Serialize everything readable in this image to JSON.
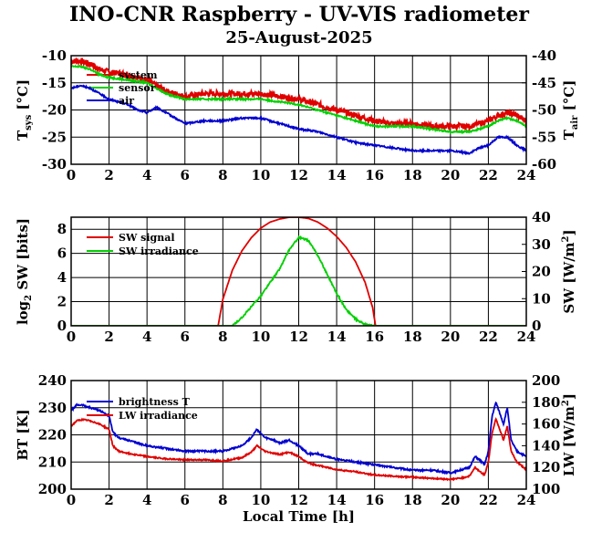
{
  "title": "INO-CNR Raspberry - UV-VIS radiometer",
  "subtitle": "25-August-2025",
  "colors": {
    "red": "#e00000",
    "green": "#00d000",
    "blue": "#0000d0",
    "grid": "#000000"
  },
  "chart_data": [
    {
      "type": "line",
      "xlim": [
        0,
        24
      ],
      "x_ticks": [
        "0",
        "2",
        "4",
        "6",
        "8",
        "10",
        "12",
        "14",
        "16",
        "18",
        "20",
        "22",
        "24"
      ],
      "ylabel_left": {
        "main": "T",
        "sub": "sys",
        "unit": " [°C]"
      },
      "ylabel_right": {
        "main": "T",
        "sub": "air",
        "unit": " [°C]"
      },
      "ylim_left": [
        -30,
        -10
      ],
      "ylim_right": [
        -60,
        -40
      ],
      "y_ticks_left": [
        "-30",
        "-25",
        "-20",
        "-15",
        "-10"
      ],
      "y_ticks_right": [
        "-60",
        "-55",
        "-50",
        "-45",
        "-40"
      ],
      "grid": true,
      "legend": "top-left",
      "series": [
        {
          "name": "system",
          "color": "red",
          "axis": "left",
          "noise": 0.5,
          "x": [
            0,
            0.5,
            1,
            1.5,
            2,
            3,
            4,
            4.5,
            5,
            5.5,
            6,
            7,
            8,
            9,
            10,
            11,
            12,
            12.5,
            13,
            14,
            15,
            16,
            17,
            18,
            19,
            20,
            20.5,
            21,
            21.5,
            22,
            22.5,
            23,
            23.5,
            24
          ],
          "y": [
            -11,
            -11,
            -11.5,
            -12.5,
            -13,
            -13.5,
            -14.5,
            -15.5,
            -16.5,
            -17,
            -17.5,
            -17,
            -17,
            -17,
            -17,
            -17.5,
            -18,
            -18.5,
            -19,
            -20,
            -21,
            -22,
            -22.5,
            -22.5,
            -23,
            -23,
            -23,
            -23,
            -22.5,
            -22,
            -21,
            -20.5,
            -21,
            -22
          ]
        },
        {
          "name": "sensor",
          "color": "green",
          "axis": "left",
          "noise": 0.15,
          "x": [
            0,
            0.5,
            1,
            1.5,
            2,
            3,
            4,
            4.5,
            5,
            5.5,
            6,
            7,
            8,
            9,
            10,
            11,
            12,
            12.5,
            13,
            14,
            15,
            16,
            17,
            18,
            19,
            20,
            20.5,
            21,
            21.5,
            22,
            22.5,
            23,
            23.5,
            24
          ],
          "y": [
            -12,
            -12,
            -12.5,
            -13.5,
            -14,
            -14.5,
            -15,
            -16,
            -17,
            -17.5,
            -18,
            -18,
            -18,
            -18,
            -18,
            -18.5,
            -19,
            -19.5,
            -20,
            -21,
            -22,
            -23,
            -23,
            -23,
            -23.5,
            -24,
            -24,
            -24,
            -23.5,
            -23,
            -22,
            -21.5,
            -22,
            -23
          ]
        },
        {
          "name": "air",
          "color": "blue",
          "axis": "right",
          "noise": 0.15,
          "x": [
            0,
            0.5,
            1,
            1.5,
            2,
            2.5,
            3,
            3.5,
            4,
            4.5,
            5,
            5.5,
            6,
            7,
            8,
            9,
            10,
            11,
            12,
            13,
            14,
            15,
            16,
            17,
            18,
            19,
            20,
            21,
            21.5,
            22,
            22.5,
            23,
            23.5,
            24
          ],
          "y": [
            -46,
            -45.5,
            -46,
            -47,
            -48,
            -48.5,
            -49,
            -50,
            -50.5,
            -49.5,
            -50.5,
            -51.5,
            -52.5,
            -52,
            -52,
            -51.5,
            -51.5,
            -52.5,
            -53.5,
            -54,
            -55,
            -56,
            -56.5,
            -57,
            -57.5,
            -57.5,
            -57.5,
            -58,
            -57,
            -56.5,
            -55,
            -55,
            -56.5,
            -57.5
          ]
        }
      ]
    },
    {
      "type": "line",
      "xlim": [
        0,
        24
      ],
      "x_ticks": [
        "0",
        "2",
        "4",
        "6",
        "8",
        "10",
        "12",
        "14",
        "16",
        "18",
        "20",
        "22",
        "24"
      ],
      "ylabel_left": {
        "main": "log",
        "sub": "2",
        "unit": " SW [bits]"
      },
      "ylabel_right": {
        "main": "SW [W/m",
        "sup": "2",
        "unit": "]"
      },
      "ylim_left": [
        0,
        9
      ],
      "ylim_right": [
        0,
        40
      ],
      "y_ticks_left": [
        "0",
        "2",
        "4",
        "6",
        "8"
      ],
      "y_ticks_right": [
        "0",
        "10",
        "20",
        "30",
        "40"
      ],
      "grid": true,
      "legend": "top-left",
      "series": [
        {
          "name": "SW signal",
          "color": "red",
          "axis": "left",
          "noise": 0,
          "x": [
            0,
            7.75,
            8,
            8.5,
            9,
            9.5,
            10,
            10.5,
            11,
            11.5,
            12,
            12.5,
            13,
            13.5,
            14,
            14.5,
            15,
            15.5,
            15.9,
            16.05,
            16.1,
            24
          ],
          "y": [
            0,
            0,
            2.2,
            4.6,
            6.2,
            7.3,
            8.1,
            8.6,
            8.85,
            9,
            9,
            8.9,
            8.6,
            8.1,
            7.4,
            6.5,
            5.3,
            3.6,
            1.5,
            0,
            0,
            0
          ]
        },
        {
          "name": "SW irradiance",
          "color": "green",
          "axis": "right",
          "noise": 0.3,
          "x": [
            0,
            8.5,
            9,
            9.5,
            10,
            10.5,
            11,
            11.5,
            12,
            12.5,
            13,
            13.5,
            14,
            14.5,
            15,
            15.5,
            16,
            24
          ],
          "y": [
            0,
            0,
            3,
            7,
            11,
            16,
            21,
            28,
            32.5,
            31.5,
            26,
            19,
            12,
            6,
            2.5,
            0.5,
            0,
            0
          ]
        }
      ]
    },
    {
      "type": "line",
      "xlim": [
        0,
        24
      ],
      "x_ticks": [
        "0",
        "2",
        "4",
        "6",
        "8",
        "10",
        "12",
        "14",
        "16",
        "18",
        "20",
        "22",
        "24"
      ],
      "xlabel": "Local Time [h]",
      "ylabel_left": {
        "main": "BT [K]"
      },
      "ylabel_right": {
        "main": "LW [W/m",
        "sup": "2",
        "unit": "]"
      },
      "ylim_left": [
        200,
        240
      ],
      "ylim_right": [
        100,
        200
      ],
      "y_ticks_left": [
        "200",
        "210",
        "220",
        "230",
        "240"
      ],
      "y_ticks_right": [
        "100",
        "120",
        "140",
        "160",
        "180",
        "200"
      ],
      "grid": true,
      "legend": "top-left",
      "series": [
        {
          "name": "brightness T",
          "color": "blue",
          "axis": "left",
          "noise": 0.3,
          "x": [
            0,
            0.3,
            0.6,
            1,
            1.5,
            2,
            2.2,
            2.5,
            3,
            4,
            5,
            6,
            7,
            8,
            9,
            9.5,
            9.8,
            10.2,
            10.7,
            11,
            11.5,
            12,
            12.5,
            13,
            14,
            15,
            16,
            17,
            18,
            19,
            20,
            20.5,
            21,
            21.3,
            21.5,
            21.8,
            22,
            22.2,
            22.4,
            22.6,
            22.8,
            23,
            23.2,
            23.5,
            24
          ],
          "y": [
            229,
            231,
            231,
            230,
            229,
            227,
            221,
            219,
            218,
            216,
            215,
            214,
            214,
            214,
            216,
            219,
            222,
            219,
            218,
            217,
            218,
            216,
            213,
            213,
            211,
            210,
            209,
            208,
            207,
            207,
            206,
            207,
            208,
            212,
            211,
            209,
            214,
            227,
            232,
            228,
            224,
            230,
            218,
            214,
            212
          ]
        },
        {
          "name": "LW irradiance",
          "color": "red",
          "axis": "right",
          "noise": 0.6,
          "x": [
            0,
            0.3,
            0.6,
            1,
            1.5,
            2,
            2.2,
            2.5,
            3,
            4,
            5,
            6,
            7,
            8,
            9,
            9.5,
            9.8,
            10.2,
            10.7,
            11,
            11.5,
            12,
            12.5,
            13,
            14,
            15,
            16,
            17,
            18,
            19,
            20,
            20.5,
            21,
            21.3,
            21.5,
            21.8,
            22,
            22.2,
            22.4,
            22.6,
            22.8,
            23,
            23.2,
            23.5,
            24
          ],
          "y": [
            158,
            163,
            164,
            163,
            160,
            155,
            140,
            135,
            133,
            130,
            128,
            127,
            127,
            126,
            129,
            134,
            140,
            135,
            133,
            132,
            134,
            130,
            124,
            122,
            118,
            116,
            113,
            112,
            111,
            110,
            109,
            110,
            112,
            120,
            117,
            113,
            125,
            152,
            165,
            155,
            145,
            158,
            135,
            125,
            118
          ]
        }
      ]
    }
  ]
}
